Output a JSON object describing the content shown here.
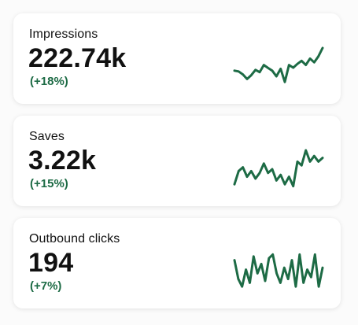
{
  "accent_color": "#1d6b45",
  "cards": [
    {
      "label": "Impressions",
      "value": "222.74k",
      "change": "(+18%)",
      "trend": [
        0.4,
        0.38,
        0.3,
        0.18,
        0.28,
        0.42,
        0.36,
        0.55,
        0.47,
        0.4,
        0.25,
        0.45,
        0.1,
        0.55,
        0.48,
        0.58,
        0.66,
        0.55,
        0.72,
        0.62,
        0.78,
        1.0
      ]
    },
    {
      "label": "Saves",
      "value": "3.22k",
      "change": "(+15%)",
      "trend": [
        0.1,
        0.45,
        0.55,
        0.3,
        0.45,
        0.25,
        0.4,
        0.65,
        0.4,
        0.5,
        0.2,
        0.35,
        0.1,
        0.3,
        0.05,
        0.7,
        0.6,
        1.0,
        0.7,
        0.85,
        0.7,
        0.8
      ]
    },
    {
      "label": "Outbound clicks",
      "value": "194",
      "change": "(+7%)",
      "trend": [
        0.8,
        0.3,
        0.1,
        0.55,
        0.2,
        0.9,
        0.45,
        0.7,
        0.25,
        0.85,
        0.95,
        0.45,
        0.2,
        0.6,
        0.3,
        0.8,
        0.1,
        0.95,
        0.2,
        0.55,
        0.35,
        0.95,
        0.1,
        0.6
      ]
    }
  ]
}
